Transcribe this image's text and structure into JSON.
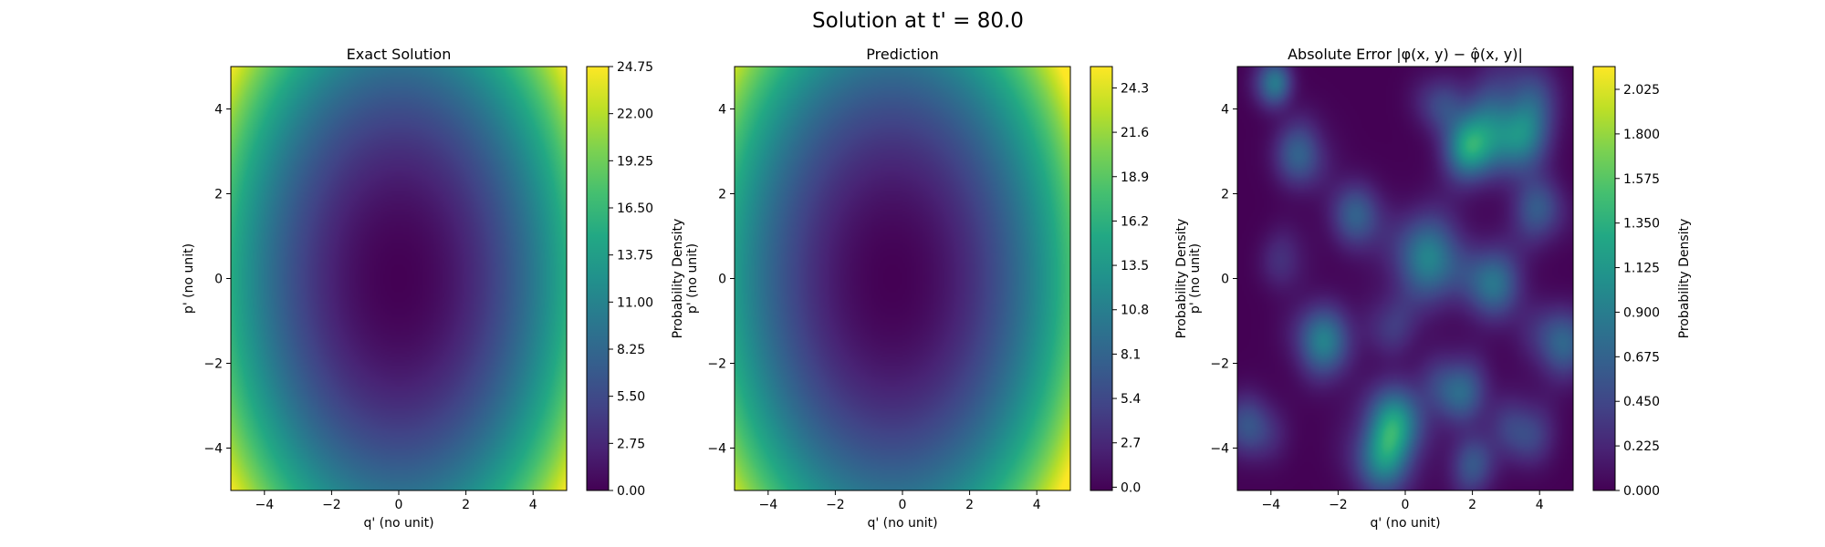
{
  "figure": {
    "suptitle": "Solution at t' = 80.0"
  },
  "colormap": [
    "#440154",
    "#482475",
    "#414487",
    "#355f8d",
    "#2a788e",
    "#21918c",
    "#22a884",
    "#44bf70",
    "#7ad151",
    "#bddf26",
    "#fde725"
  ],
  "chart_data": [
    {
      "type": "heatmap",
      "title": "Exact Solution",
      "xlabel": "q' (no unit)",
      "ylabel": "p' (no unit)",
      "xlim": [
        -5,
        5
      ],
      "ylim": [
        -5,
        5
      ],
      "xticks": [
        -4,
        -2,
        0,
        2,
        4
      ],
      "yticks": [
        -4,
        -2,
        0,
        2,
        4
      ],
      "xtick_labels": [
        "−4",
        "−2",
        "0",
        "2",
        "4"
      ],
      "ytick_labels": [
        "−4",
        "−2",
        "0",
        "2",
        "4"
      ],
      "colormap": "viridis",
      "field": "Probability density approximately proportional to q'^2 + 0.6 p'^2, minimum at (0, 0)",
      "colorbar": {
        "label": "Probability Density",
        "min": 0.0,
        "max": 24.75,
        "ticks": [
          0.0,
          2.75,
          5.5,
          8.25,
          11.0,
          13.75,
          16.5,
          19.25,
          22.0,
          24.75
        ],
        "tick_labels": [
          "0.00",
          "2.75",
          "5.50",
          "8.25",
          "11.00",
          "13.75",
          "16.50",
          "19.25",
          "22.00",
          "24.75"
        ]
      }
    },
    {
      "type": "heatmap",
      "title": "Prediction",
      "xlabel": "q' (no unit)",
      "ylabel": "p' (no unit)",
      "xlim": [
        -5,
        5
      ],
      "ylim": [
        -5,
        5
      ],
      "xticks": [
        -4,
        -2,
        0,
        2,
        4
      ],
      "yticks": [
        -4,
        -2,
        0,
        2,
        4
      ],
      "xtick_labels": [
        "−4",
        "−2",
        "0",
        "2",
        "4"
      ],
      "ytick_labels": [
        "−4",
        "−2",
        "0",
        "2",
        "4"
      ],
      "colormap": "viridis",
      "field": "Probability density similar to exact solution, minimum near (-0.3, 0)",
      "colorbar": {
        "label": "Probability Density",
        "min": -0.2,
        "max": 25.6,
        "ticks": [
          0.0,
          2.7,
          5.4,
          8.1,
          10.8,
          13.5,
          16.2,
          18.9,
          21.6,
          24.3
        ],
        "tick_labels": [
          "0.0",
          "2.7",
          "5.4",
          "8.1",
          "10.8",
          "13.5",
          "16.2",
          "18.9",
          "21.6",
          "24.3"
        ]
      }
    },
    {
      "type": "heatmap",
      "title": "Absolute Error |φ(x, y) − φ̂(x, y)|",
      "xlabel": "q' (no unit)",
      "ylabel": "p' (no unit)",
      "xlim": [
        -5,
        5
      ],
      "ylim": [
        -5,
        5
      ],
      "xticks": [
        -4,
        -2,
        0,
        2,
        4
      ],
      "yticks": [
        -4,
        -2,
        0,
        2,
        4
      ],
      "xtick_labels": [
        "−4",
        "−2",
        "0",
        "2",
        "4"
      ],
      "ytick_labels": [
        "−4",
        "−2",
        "0",
        "2",
        "4"
      ],
      "colormap": "viridis",
      "field": "Patchy error field with overlapping circular blobs; peaks near (3.2, 3.8), (-4, 4.6) and (-0.5, -3.8)",
      "colorbar": {
        "label": "Probability Density",
        "min": 0.0,
        "max": 2.14,
        "ticks": [
          0.0,
          0.225,
          0.45,
          0.675,
          0.9,
          1.125,
          1.35,
          1.575,
          1.8,
          2.025
        ],
        "tick_labels": [
          "0.000",
          "0.225",
          "0.450",
          "0.675",
          "0.900",
          "1.125",
          "1.350",
          "1.575",
          "1.800",
          "2.025"
        ]
      }
    }
  ]
}
